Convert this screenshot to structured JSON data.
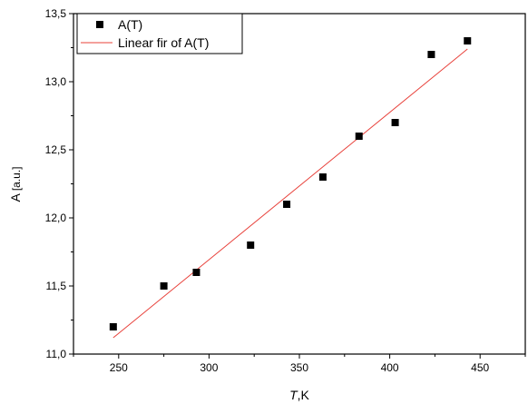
{
  "chart_data": {
    "type": "scatter",
    "xlabel_italic": "T",
    "xlabel_unit": ",K",
    "ylabel_main": "A",
    "ylabel_unit": "[a.u.]",
    "xlim": [
      225,
      475
    ],
    "ylim": [
      11.0,
      13.5
    ],
    "xticks": [
      250,
      300,
      350,
      400,
      450
    ],
    "xtick_labels": [
      "250",
      "300",
      "350",
      "400",
      "450"
    ],
    "yticks": [
      11.0,
      11.5,
      12.0,
      12.5,
      13.0,
      13.5
    ],
    "ytick_labels": [
      "11,0",
      "11,5",
      "12,0",
      "12,5",
      "13,0",
      "13,5"
    ],
    "grid": false,
    "legend_position": "top-left",
    "series": [
      {
        "name": "A(T)",
        "kind": "scatter",
        "color": "#000000",
        "marker": "square",
        "x": [
          247,
          275,
          293,
          323,
          343,
          363,
          383,
          403,
          423,
          443
        ],
        "y": [
          11.2,
          11.5,
          11.6,
          11.8,
          12.1,
          12.3,
          12.6,
          12.7,
          13.2,
          13.3
        ]
      },
      {
        "name": "Linear fir of A(T)",
        "kind": "line",
        "color": "#e8403a",
        "x": [
          247,
          443
        ],
        "y": [
          11.12,
          13.24
        ]
      }
    ]
  }
}
